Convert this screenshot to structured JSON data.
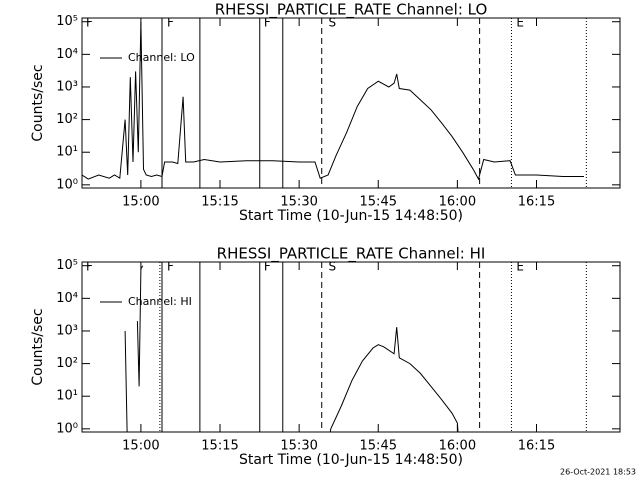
{
  "chart_data": [
    {
      "type": "line",
      "title": "RHESSI_PARTICLE_RATE Channel: LO",
      "xlabel": "Start Time (10-Jun-15 14:48:50)",
      "ylabel": "Counts/sec",
      "x": [
        "14:48:50",
        "14:50",
        "14:52",
        "14:54",
        "14:55",
        "14:56",
        "14:57",
        "14:57:30",
        "14:58",
        "14:58:30",
        "14:59",
        "14:59:30",
        "15:00",
        "15:00:30",
        "15:01",
        "15:02",
        "15:03",
        "15:04",
        "15:04:30",
        "15:06",
        "15:07",
        "15:08",
        "15:08:30",
        "15:10",
        "15:12",
        "15:15",
        "15:20",
        "15:25",
        "15:30",
        "15:33",
        "15:34",
        "15:35:30",
        "15:37",
        "15:39",
        "15:41",
        "15:43",
        "15:45",
        "15:47",
        "15:48",
        "15:48:30",
        "15:49",
        "15:51",
        "15:53",
        "15:55",
        "15:57",
        "15:59",
        "16:01",
        "16:03",
        "16:04",
        "16:05",
        "16:07",
        "16:10",
        "16:11",
        "16:15",
        "16:20",
        "16:24"
      ],
      "series": [
        {
          "name": "Channel: LO",
          "color": "#000000",
          "values": [
            2,
            1.5,
            2,
            1.6,
            2,
            1.6,
            100,
            2,
            2000,
            5,
            3000,
            10,
            100000,
            3,
            2,
            1.8,
            2,
            1.8,
            5,
            5,
            4.5,
            500,
            5,
            5,
            6,
            5,
            5.5,
            5.5,
            5,
            5,
            1.6,
            2,
            8,
            40,
            250,
            900,
            1500,
            1000,
            1300,
            2500,
            900,
            800,
            400,
            200,
            80,
            30,
            10,
            3,
            1.5,
            6,
            5,
            5.5,
            2,
            2,
            1.8,
            1.8
          ]
        }
      ],
      "xlim": [
        "14:48:50",
        "16:30:50"
      ],
      "xticks": [
        "15:00",
        "15:15",
        "15:30",
        "15:45",
        "16:00",
        "16:15"
      ],
      "ylim": [
        0.8,
        130000
      ],
      "log_y": true,
      "yticks": [
        {
          "value": 1,
          "label": "10⁰"
        },
        {
          "value": 10,
          "label": "10¹"
        },
        {
          "value": 100,
          "label": "10²"
        },
        {
          "value": 1000,
          "label": "10³"
        },
        {
          "value": 10000,
          "label": "10⁴"
        },
        {
          "value": 100000,
          "label": "10⁵"
        }
      ],
      "legend": "upper left",
      "markers": [
        {
          "x": "15:04:00",
          "style": "solid"
        },
        {
          "x": "15:11:11",
          "style": "solid"
        },
        {
          "x": "15:22:32",
          "style": "solid"
        },
        {
          "x": "15:26:54",
          "style": "solid"
        },
        {
          "x": "15:34:17",
          "style": "dashed"
        },
        {
          "x": "16:04:13",
          "style": "dashed"
        },
        {
          "x": "16:10:15",
          "style": "dotted"
        },
        {
          "x": "16:24:27",
          "style": "dotted"
        }
      ],
      "flags": [
        {
          "x": "14:49:13",
          "text": "F"
        },
        {
          "x": "15:04:34",
          "text": "F"
        },
        {
          "x": "15:22:56",
          "text": "F"
        },
        {
          "x": "15:35:11",
          "text": "S"
        },
        {
          "x": "16:10:49",
          "text": "E"
        }
      ]
    },
    {
      "type": "line",
      "title": "RHESSI_PARTICLE_RATE Channel: HI",
      "xlabel": "Start Time (10-Jun-15 14:48:50)",
      "ylabel": "Counts/sec",
      "x": [
        "14:57",
        "14:57:30",
        "14:58",
        "14:59:20",
        "14:59:40",
        "15:00",
        "15:00:20",
        "15:10",
        "15:35",
        "15:36",
        "15:38",
        "15:40",
        "15:42",
        "15:44",
        "15:45",
        "15:46",
        "15:48",
        "15:48:30",
        "15:49",
        "15:51",
        "15:53",
        "15:55",
        "15:57",
        "15:59",
        "16:00",
        "16:00:30"
      ],
      "series": [
        {
          "name": "Channel: HI",
          "color": "#000000",
          "values": [
            1000,
            0.1,
            null,
            2000,
            20,
            80000,
            100000,
            null,
            0.1,
            1,
            5,
            30,
            120,
            300,
            380,
            330,
            200,
            1300,
            150,
            100,
            50,
            20,
            8,
            3,
            1.5,
            0.1
          ]
        }
      ],
      "xlim": [
        "14:48:50",
        "16:30:50"
      ],
      "xticks": [
        "15:00",
        "15:15",
        "15:30",
        "15:45",
        "16:00",
        "16:15"
      ],
      "ylim": [
        0.8,
        130000
      ],
      "log_y": true,
      "yticks": [
        {
          "value": 1,
          "label": "10⁰"
        },
        {
          "value": 10,
          "label": "10¹"
        },
        {
          "value": 100,
          "label": "10²"
        },
        {
          "value": 1000,
          "label": "10³"
        },
        {
          "value": 10000,
          "label": "10⁴"
        },
        {
          "value": 100000,
          "label": "10⁵"
        }
      ],
      "legend": "upper left",
      "markers": [
        {
          "x": "15:03:36",
          "style": "dotted"
        },
        {
          "x": "15:04:00",
          "style": "solid"
        },
        {
          "x": "15:11:11",
          "style": "solid"
        },
        {
          "x": "15:22:32",
          "style": "solid"
        },
        {
          "x": "15:26:54",
          "style": "solid"
        },
        {
          "x": "15:34:17",
          "style": "dashed"
        },
        {
          "x": "16:04:13",
          "style": "dashed"
        },
        {
          "x": "16:10:15",
          "style": "dotted"
        },
        {
          "x": "16:24:27",
          "style": "dotted"
        }
      ],
      "flags": [
        {
          "x": "14:49:13",
          "text": "F"
        },
        {
          "x": "15:04:34",
          "text": "F"
        },
        {
          "x": "15:22:56",
          "text": "F"
        },
        {
          "x": "15:35:11",
          "text": "S"
        },
        {
          "x": "16:10:49",
          "text": "E"
        }
      ]
    }
  ],
  "timestamp": "26-Oct-2021 18:53"
}
